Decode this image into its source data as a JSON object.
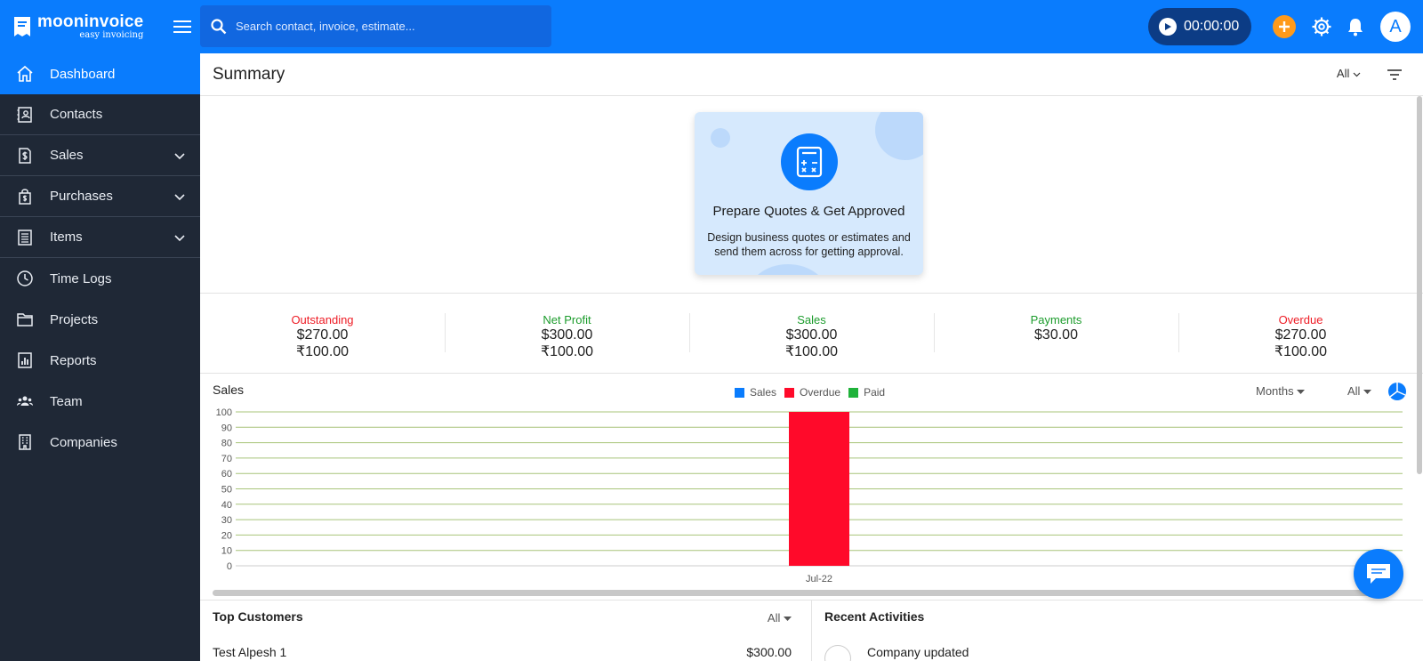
{
  "app": {
    "name": "mooninvoice",
    "tagline": "easy invoicing"
  },
  "search": {
    "placeholder": "Search contact, invoice, estimate..."
  },
  "timer": {
    "value": "00:00:00"
  },
  "user": {
    "initial": "A"
  },
  "colors": {
    "brand": "#0a7cfd",
    "sidebar": "#1f2836",
    "overdue": "#ff0a2a",
    "sales": "#0a7cfd",
    "paid": "#1fb23a",
    "orange": "#ff9a1a"
  },
  "sidebar": {
    "items": [
      {
        "label": "Dashboard",
        "icon": "home-icon",
        "active": true
      },
      {
        "label": "Contacts",
        "icon": "contacts-icon"
      },
      {
        "label": "Sales",
        "icon": "dollar-doc-icon",
        "expandable": true
      },
      {
        "label": "Purchases",
        "icon": "shopping-bag-icon",
        "expandable": true
      },
      {
        "label": "Items",
        "icon": "list-icon",
        "expandable": true
      },
      {
        "label": "Time Logs",
        "icon": "clock-icon"
      },
      {
        "label": "Projects",
        "icon": "folder-icon"
      },
      {
        "label": "Reports",
        "icon": "bar-chart-icon"
      },
      {
        "label": "Team",
        "icon": "team-icon"
      },
      {
        "label": "Companies",
        "icon": "building-icon"
      }
    ]
  },
  "summary": {
    "title": "Summary",
    "filter": "All"
  },
  "promo": {
    "title": "Prepare Quotes & Get Approved",
    "description": "Design business quotes or estimates and send them across for getting approval."
  },
  "stats": [
    {
      "label": "Outstanding",
      "values": [
        "$270.00",
        "₹100.00"
      ],
      "tone": "red"
    },
    {
      "label": "Net Profit",
      "values": [
        "$300.00",
        "₹100.00"
      ],
      "tone": "green"
    },
    {
      "label": "Sales",
      "values": [
        "$300.00",
        "₹100.00"
      ],
      "tone": "green"
    },
    {
      "label": "Payments",
      "values": [
        "$30.00"
      ],
      "tone": "green"
    },
    {
      "label": "Overdue",
      "values": [
        "$270.00",
        "₹100.00"
      ],
      "tone": "red"
    }
  ],
  "sales_chart": {
    "title": "Sales",
    "period": "Months",
    "filter": "All"
  },
  "chart_data": {
    "type": "bar",
    "title": "Sales",
    "categories": [
      "Jul-22"
    ],
    "series": [
      {
        "name": "Sales",
        "values": [
          0
        ],
        "color": "#0a7cfd"
      },
      {
        "name": "Overdue",
        "values": [
          100
        ],
        "color": "#ff0a2a"
      },
      {
        "name": "Paid",
        "values": [
          0
        ],
        "color": "#1fb23a"
      }
    ],
    "ylim": [
      0,
      100
    ],
    "yticks": [
      0,
      10,
      20,
      30,
      40,
      50,
      60,
      70,
      80,
      90,
      100
    ],
    "grid": true,
    "legend": "top-center"
  },
  "top_customers": {
    "title": "Top Customers",
    "filter": "All",
    "rows": [
      {
        "name": "Test Alpesh 1",
        "amount": "$300.00"
      }
    ]
  },
  "recent_activities": {
    "title": "Recent Activities",
    "items": [
      {
        "text": "Company updated"
      }
    ]
  }
}
